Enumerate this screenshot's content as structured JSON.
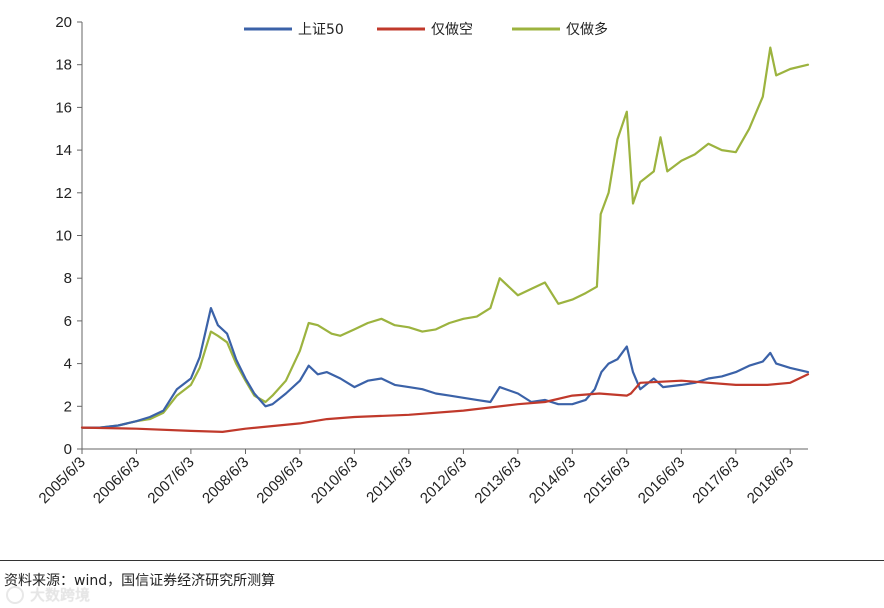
{
  "chart_data": {
    "type": "line",
    "title": "",
    "xlabel": "",
    "ylabel": "",
    "ylim": [
      0,
      20
    ],
    "yticks": [
      0,
      2,
      4,
      6,
      8,
      10,
      12,
      14,
      16,
      18,
      20
    ],
    "xlim": [
      "2005-06-03",
      "2018-09-30"
    ],
    "xtick_labels": [
      "2005/6/3",
      "2006/6/3",
      "2007/6/3",
      "2008/6/3",
      "2009/6/3",
      "2010/6/3",
      "2011/6/3",
      "2012/6/3",
      "2013/6/3",
      "2014/6/3",
      "2015/6/3",
      "2016/6/3",
      "2017/6/3",
      "2018/6/3"
    ],
    "grid": false,
    "legend_position": "top-center",
    "series": [
      {
        "name": "上证50",
        "color": "#3b62a8",
        "x": [
          "2005-06-03",
          "2005-10-01",
          "2006-02-01",
          "2006-06-03",
          "2006-09-01",
          "2006-12-01",
          "2007-03-01",
          "2007-06-03",
          "2007-08-01",
          "2007-10-15",
          "2007-12-01",
          "2008-02-01",
          "2008-04-01",
          "2008-06-03",
          "2008-08-01",
          "2008-10-15",
          "2008-12-01",
          "2009-03-01",
          "2009-06-03",
          "2009-08-01",
          "2009-10-01",
          "2009-12-01",
          "2010-03-01",
          "2010-06-03",
          "2010-09-01",
          "2010-12-01",
          "2011-03-01",
          "2011-06-03",
          "2011-09-01",
          "2011-12-01",
          "2012-03-01",
          "2012-06-03",
          "2012-09-01",
          "2012-12-01",
          "2013-02-01",
          "2013-06-03",
          "2013-09-01",
          "2013-12-01",
          "2014-03-01",
          "2014-06-03",
          "2014-09-01",
          "2014-11-01",
          "2014-12-15",
          "2015-02-01",
          "2015-04-01",
          "2015-06-03",
          "2015-07-15",
          "2015-09-01",
          "2015-12-01",
          "2016-02-01",
          "2016-06-03",
          "2016-09-01",
          "2016-12-01",
          "2017-03-01",
          "2017-06-03",
          "2017-09-01",
          "2017-12-01",
          "2018-01-20",
          "2018-03-01",
          "2018-06-03",
          "2018-09-30"
        ],
        "values": [
          1.0,
          1.0,
          1.1,
          1.3,
          1.5,
          1.8,
          2.8,
          3.3,
          4.3,
          6.6,
          5.8,
          5.4,
          4.2,
          3.3,
          2.6,
          2.0,
          2.1,
          2.6,
          3.2,
          3.9,
          3.5,
          3.6,
          3.3,
          2.9,
          3.2,
          3.3,
          3.0,
          2.9,
          2.8,
          2.6,
          2.5,
          2.4,
          2.3,
          2.2,
          2.9,
          2.6,
          2.2,
          2.3,
          2.1,
          2.1,
          2.3,
          2.8,
          3.6,
          4.0,
          4.2,
          4.8,
          3.6,
          2.8,
          3.3,
          2.9,
          3.0,
          3.1,
          3.3,
          3.4,
          3.6,
          3.9,
          4.1,
          4.5,
          4.0,
          3.8,
          3.6
        ]
      },
      {
        "name": "仅做空",
        "color": "#c0392b",
        "x": [
          "2005-06-03",
          "2006-06-03",
          "2007-06-03",
          "2008-01-01",
          "2008-06-03",
          "2009-06-03",
          "2009-12-01",
          "2010-06-03",
          "2011-06-03",
          "2012-06-03",
          "2013-06-03",
          "2013-12-01",
          "2014-06-03",
          "2014-12-01",
          "2015-06-03",
          "2015-07-01",
          "2015-09-01",
          "2016-06-03",
          "2017-06-03",
          "2018-01-01",
          "2018-06-03",
          "2018-09-30"
        ],
        "values": [
          1.0,
          0.95,
          0.85,
          0.8,
          0.95,
          1.2,
          1.4,
          1.5,
          1.6,
          1.8,
          2.1,
          2.2,
          2.5,
          2.6,
          2.5,
          2.6,
          3.1,
          3.2,
          3.0,
          3.0,
          3.1,
          3.5
        ]
      },
      {
        "name": "仅做多",
        "color": "#9cb33f",
        "x": [
          "2005-06-03",
          "2005-10-01",
          "2006-02-01",
          "2006-06-03",
          "2006-09-01",
          "2006-12-01",
          "2007-03-01",
          "2007-06-03",
          "2007-08-01",
          "2007-10-15",
          "2007-12-01",
          "2008-02-01",
          "2008-04-01",
          "2008-06-03",
          "2008-08-01",
          "2008-10-15",
          "2008-12-01",
          "2009-03-01",
          "2009-06-03",
          "2009-08-01",
          "2009-10-01",
          "2010-01-01",
          "2010-03-01",
          "2010-06-03",
          "2010-09-01",
          "2010-12-01",
          "2011-03-01",
          "2011-06-03",
          "2011-09-01",
          "2011-12-01",
          "2012-03-01",
          "2012-06-03",
          "2012-09-01",
          "2012-12-01",
          "2013-02-01",
          "2013-06-03",
          "2013-09-01",
          "2013-12-01",
          "2014-03-01",
          "2014-06-03",
          "2014-09-01",
          "2014-11-15",
          "2014-12-10",
          "2015-02-01",
          "2015-04-01",
          "2015-06-03",
          "2015-07-15",
          "2015-09-01",
          "2015-12-01",
          "2016-01-15",
          "2016-03-01",
          "2016-06-03",
          "2016-09-01",
          "2016-12-01",
          "2017-03-01",
          "2017-06-03",
          "2017-09-01",
          "2017-12-01",
          "2018-01-20",
          "2018-03-01",
          "2018-06-03",
          "2018-09-30"
        ],
        "values": [
          1.0,
          1.0,
          1.1,
          1.3,
          1.4,
          1.7,
          2.5,
          3.0,
          3.8,
          5.5,
          5.3,
          5.0,
          4.0,
          3.2,
          2.5,
          2.2,
          2.5,
          3.2,
          4.6,
          5.9,
          5.8,
          5.4,
          5.3,
          5.6,
          5.9,
          6.1,
          5.8,
          5.7,
          5.5,
          5.6,
          5.9,
          6.1,
          6.2,
          6.6,
          8.0,
          7.2,
          7.5,
          7.8,
          6.8,
          7.0,
          7.3,
          7.6,
          11.0,
          12.0,
          14.5,
          15.8,
          11.5,
          12.5,
          13.0,
          14.6,
          13.0,
          13.5,
          13.8,
          14.3,
          14.0,
          13.9,
          15.0,
          16.5,
          18.8,
          17.5,
          17.8,
          18.0
        ]
      }
    ]
  },
  "source": {
    "text": "资料来源：wind，国信证券经济研究所测算"
  },
  "watermark": {
    "text": "大数跨境"
  }
}
